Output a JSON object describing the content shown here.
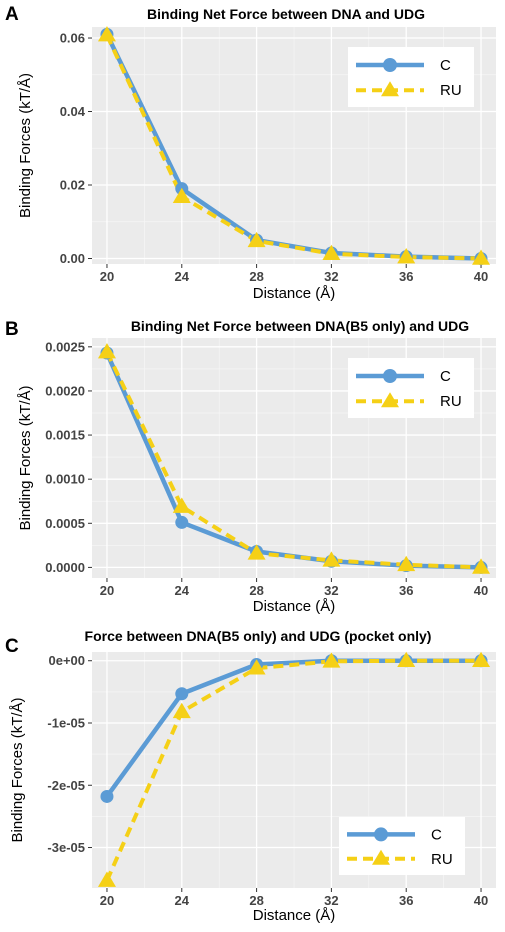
{
  "colors": {
    "series_C": "#5b9bd5",
    "series_RU": "#f5d016",
    "panel_bg": "#ebebeb",
    "grid": "#ffffff"
  },
  "chart_data": [
    {
      "panel_label": "A",
      "type": "line",
      "title": "Binding Net Force between DNA and UDG",
      "xlabel": "Distance (Å)",
      "ylabel": "Binding Forces (kT/Å)",
      "xlim": [
        19.2,
        40.8
      ],
      "ylim": [
        -0.0015,
        0.063
      ],
      "x_ticks": [
        20,
        24,
        28,
        32,
        36,
        40
      ],
      "x_tick_labels": [
        "20",
        "24",
        "28",
        "32",
        "36",
        "40"
      ],
      "y_ticks": [
        0,
        0.02,
        0.04,
        0.06
      ],
      "y_tick_labels": [
        "0.00",
        "0.02",
        "0.04",
        "0.06"
      ],
      "legend_position": "top-right",
      "series": [
        {
          "name": "C",
          "x": [
            20,
            24,
            28,
            32,
            36,
            40
          ],
          "values": [
            0.061,
            0.019,
            0.005,
            0.0015,
            0.0005,
            0.0
          ]
        },
        {
          "name": "RU",
          "x": [
            20,
            24,
            28,
            32,
            36,
            40
          ],
          "values": [
            0.0608,
            0.0168,
            0.0048,
            0.0013,
            0.0004,
            0.0
          ]
        }
      ]
    },
    {
      "panel_label": "B",
      "type": "line",
      "title": "Binding Net Force between DNA(B5 only) and UDG",
      "xlabel": "Distance (Å)",
      "ylabel": "Binding Forces (kT/Å)",
      "xlim": [
        19.2,
        40.8
      ],
      "ylim": [
        -0.00012,
        0.0026
      ],
      "x_ticks": [
        20,
        24,
        28,
        32,
        36,
        40
      ],
      "x_tick_labels": [
        "20",
        "24",
        "28",
        "32",
        "36",
        "40"
      ],
      "y_ticks": [
        0,
        0.0005,
        0.001,
        0.0015,
        0.002,
        0.0025
      ],
      "y_tick_labels": [
        "0.0000",
        "0.0005",
        "0.0010",
        "0.0015",
        "0.0020",
        "0.0025"
      ],
      "legend_position": "top-right",
      "series": [
        {
          "name": "C",
          "x": [
            20,
            24,
            28,
            32,
            36,
            40
          ],
          "values": [
            0.00243,
            0.00051,
            0.00018,
            7e-05,
            2e-05,
            0.0
          ]
        },
        {
          "name": "RU",
          "x": [
            20,
            24,
            28,
            32,
            36,
            40
          ],
          "values": [
            0.00244,
            0.00069,
            0.00016,
            8e-05,
            3e-05,
            0.0
          ]
        }
      ]
    },
    {
      "panel_label": "C",
      "type": "line",
      "title": "Force between DNA(B5 only) and UDG (pocket only)",
      "xlabel": "Distance (Å)",
      "ylabel": "Binding Forces (kT/Å)",
      "xlim": [
        19.2,
        40.8
      ],
      "ylim": [
        -3.65e-05,
        1.4e-06
      ],
      "x_ticks": [
        20,
        24,
        28,
        32,
        36,
        40
      ],
      "x_tick_labels": [
        "20",
        "24",
        "28",
        "32",
        "36",
        "40"
      ],
      "y_ticks": [
        0,
        -1e-05,
        -2e-05,
        -3e-05
      ],
      "y_tick_labels": [
        "0e+00",
        "-1e-05",
        "-2e-05",
        "-3e-05"
      ],
      "legend_position": "bottom-right",
      "series": [
        {
          "name": "C",
          "x": [
            20,
            24,
            28,
            32,
            36,
            40
          ],
          "values": [
            -2.18e-05,
            -5.3e-06,
            -6e-07,
            0.0,
            0.0,
            0.0
          ]
        },
        {
          "name": "RU",
          "x": [
            20,
            24,
            28,
            32,
            36,
            40
          ],
          "values": [
            -3.53e-05,
            -8.2e-06,
            -1.2e-06,
            -1e-07,
            0.0,
            0.0
          ]
        }
      ]
    }
  ]
}
